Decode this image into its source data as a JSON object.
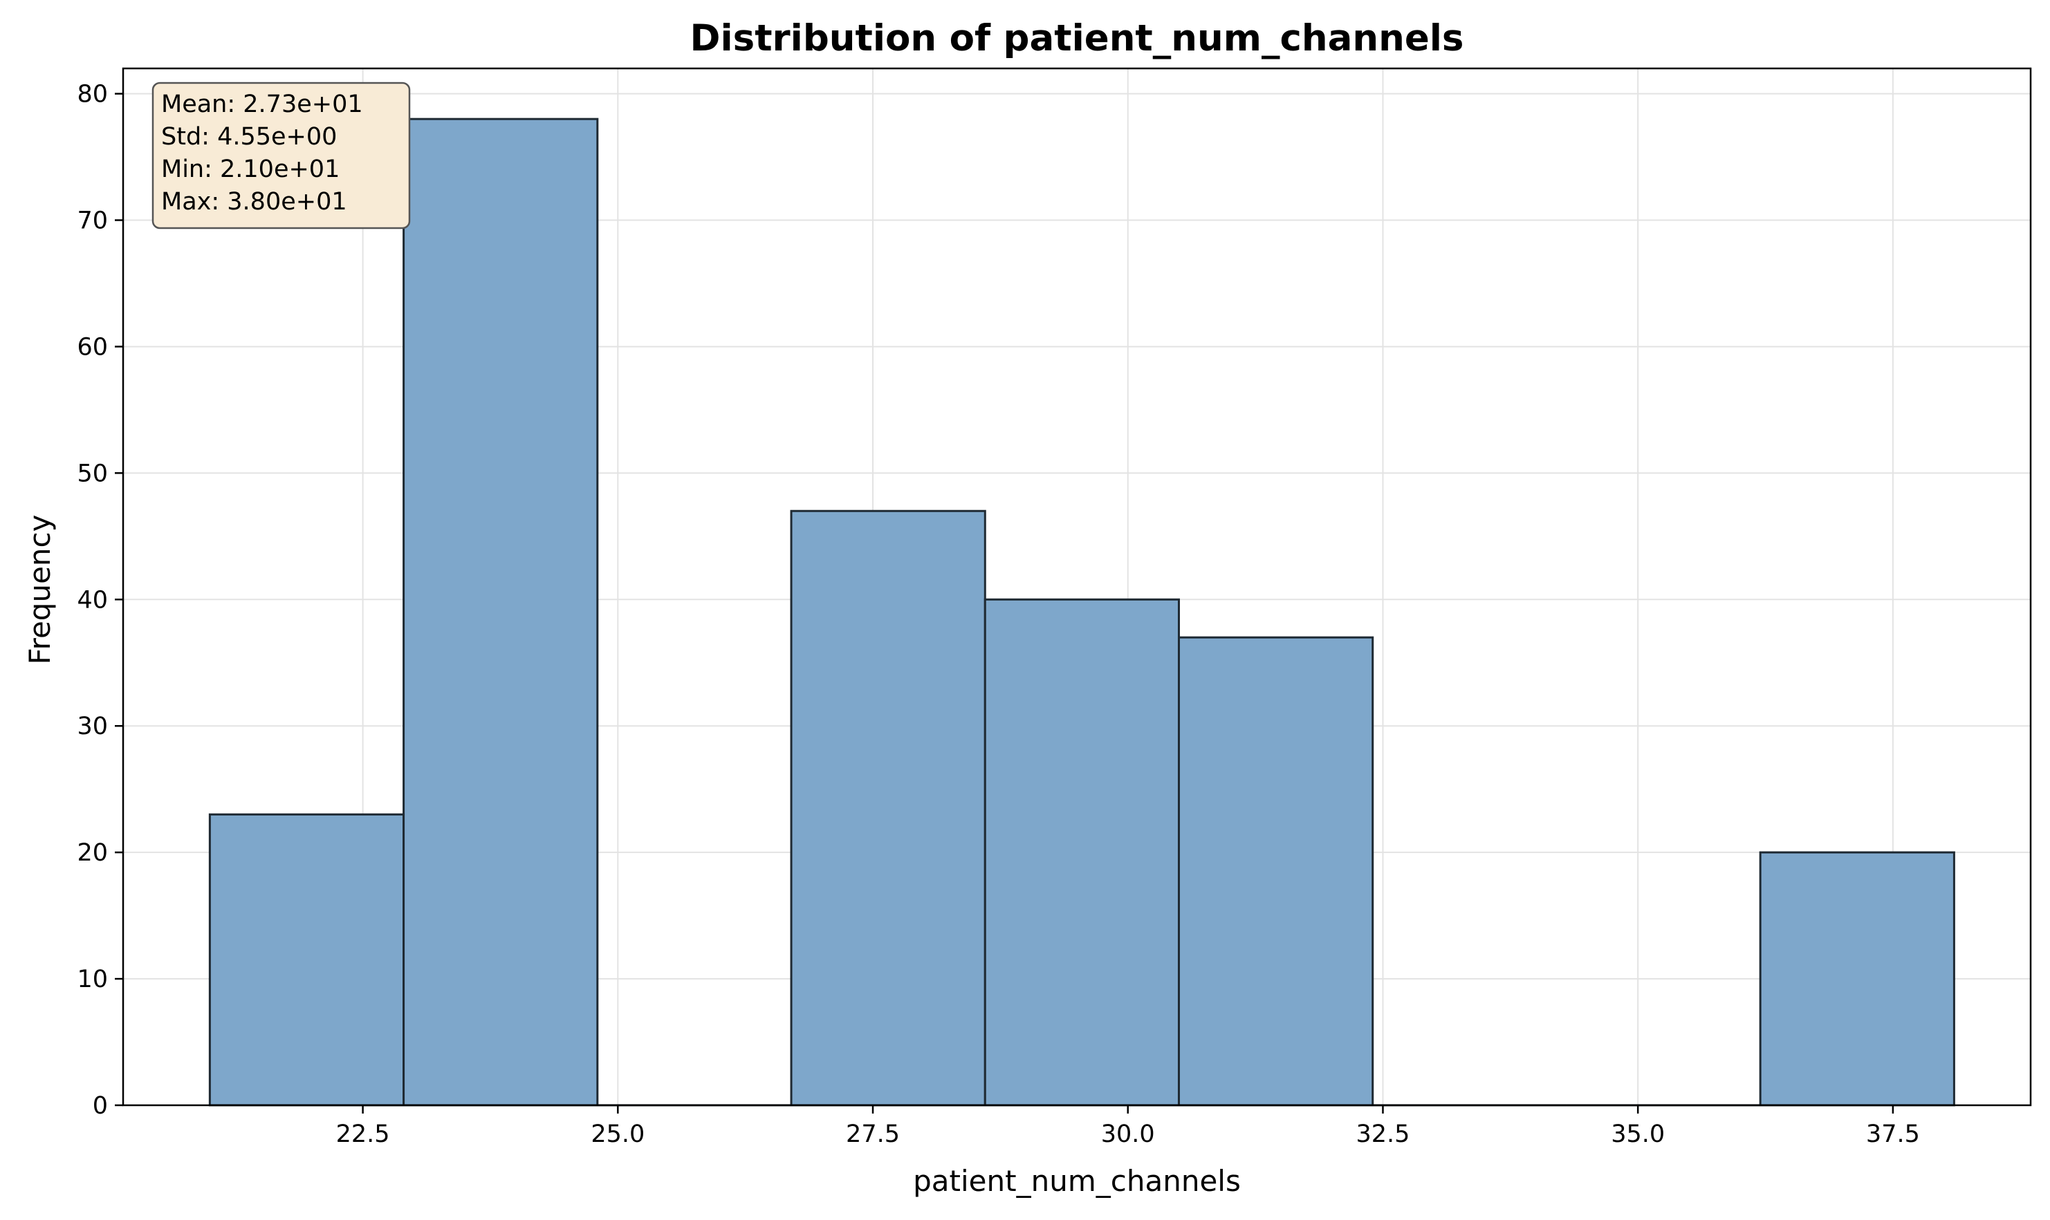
{
  "chart_data": {
    "type": "histogram",
    "title": "Distribution of patient_num_channels",
    "xlabel": "patient_num_channels",
    "ylabel": "Frequency",
    "xlim": [
      20.15,
      38.85
    ],
    "ylim": [
      0,
      82
    ],
    "xticks": [
      22.5,
      25.0,
      27.5,
      30.0,
      32.5,
      35.0,
      37.5
    ],
    "xtick_labels": [
      "22.5",
      "25.0",
      "27.5",
      "30.0",
      "32.5",
      "35.0",
      "37.5"
    ],
    "yticks": [
      0,
      10,
      20,
      30,
      40,
      50,
      60,
      70,
      80
    ],
    "ytick_labels": [
      "0",
      "10",
      "20",
      "30",
      "40",
      "50",
      "60",
      "70",
      "80"
    ],
    "grid": true,
    "bins": [
      {
        "x0": 21.0,
        "x1": 22.9,
        "count": 23
      },
      {
        "x0": 22.9,
        "x1": 24.8,
        "count": 78
      },
      {
        "x0": 24.8,
        "x1": 26.7,
        "count": 0
      },
      {
        "x0": 26.7,
        "x1": 28.6,
        "count": 47
      },
      {
        "x0": 28.6,
        "x1": 30.5,
        "count": 40
      },
      {
        "x0": 30.5,
        "x1": 32.4,
        "count": 37
      },
      {
        "x0": 32.4,
        "x1": 34.3,
        "count": 0
      },
      {
        "x0": 34.3,
        "x1": 36.2,
        "count": 0
      },
      {
        "x0": 36.2,
        "x1": 38.1,
        "count": 20
      }
    ],
    "stats_lines": [
      "Mean: 2.73e+01",
      "Std: 4.55e+00",
      "Min: 2.10e+01",
      "Max: 3.80e+01"
    ],
    "stats_box_position": "top-left",
    "colors": {
      "bar_fill": "#7ea7cb",
      "bar_edge": "#1f2a33",
      "grid": "#e3e3e3",
      "stats_box_fill": "#f8ebd6",
      "stats_box_edge": "#555555"
    }
  }
}
